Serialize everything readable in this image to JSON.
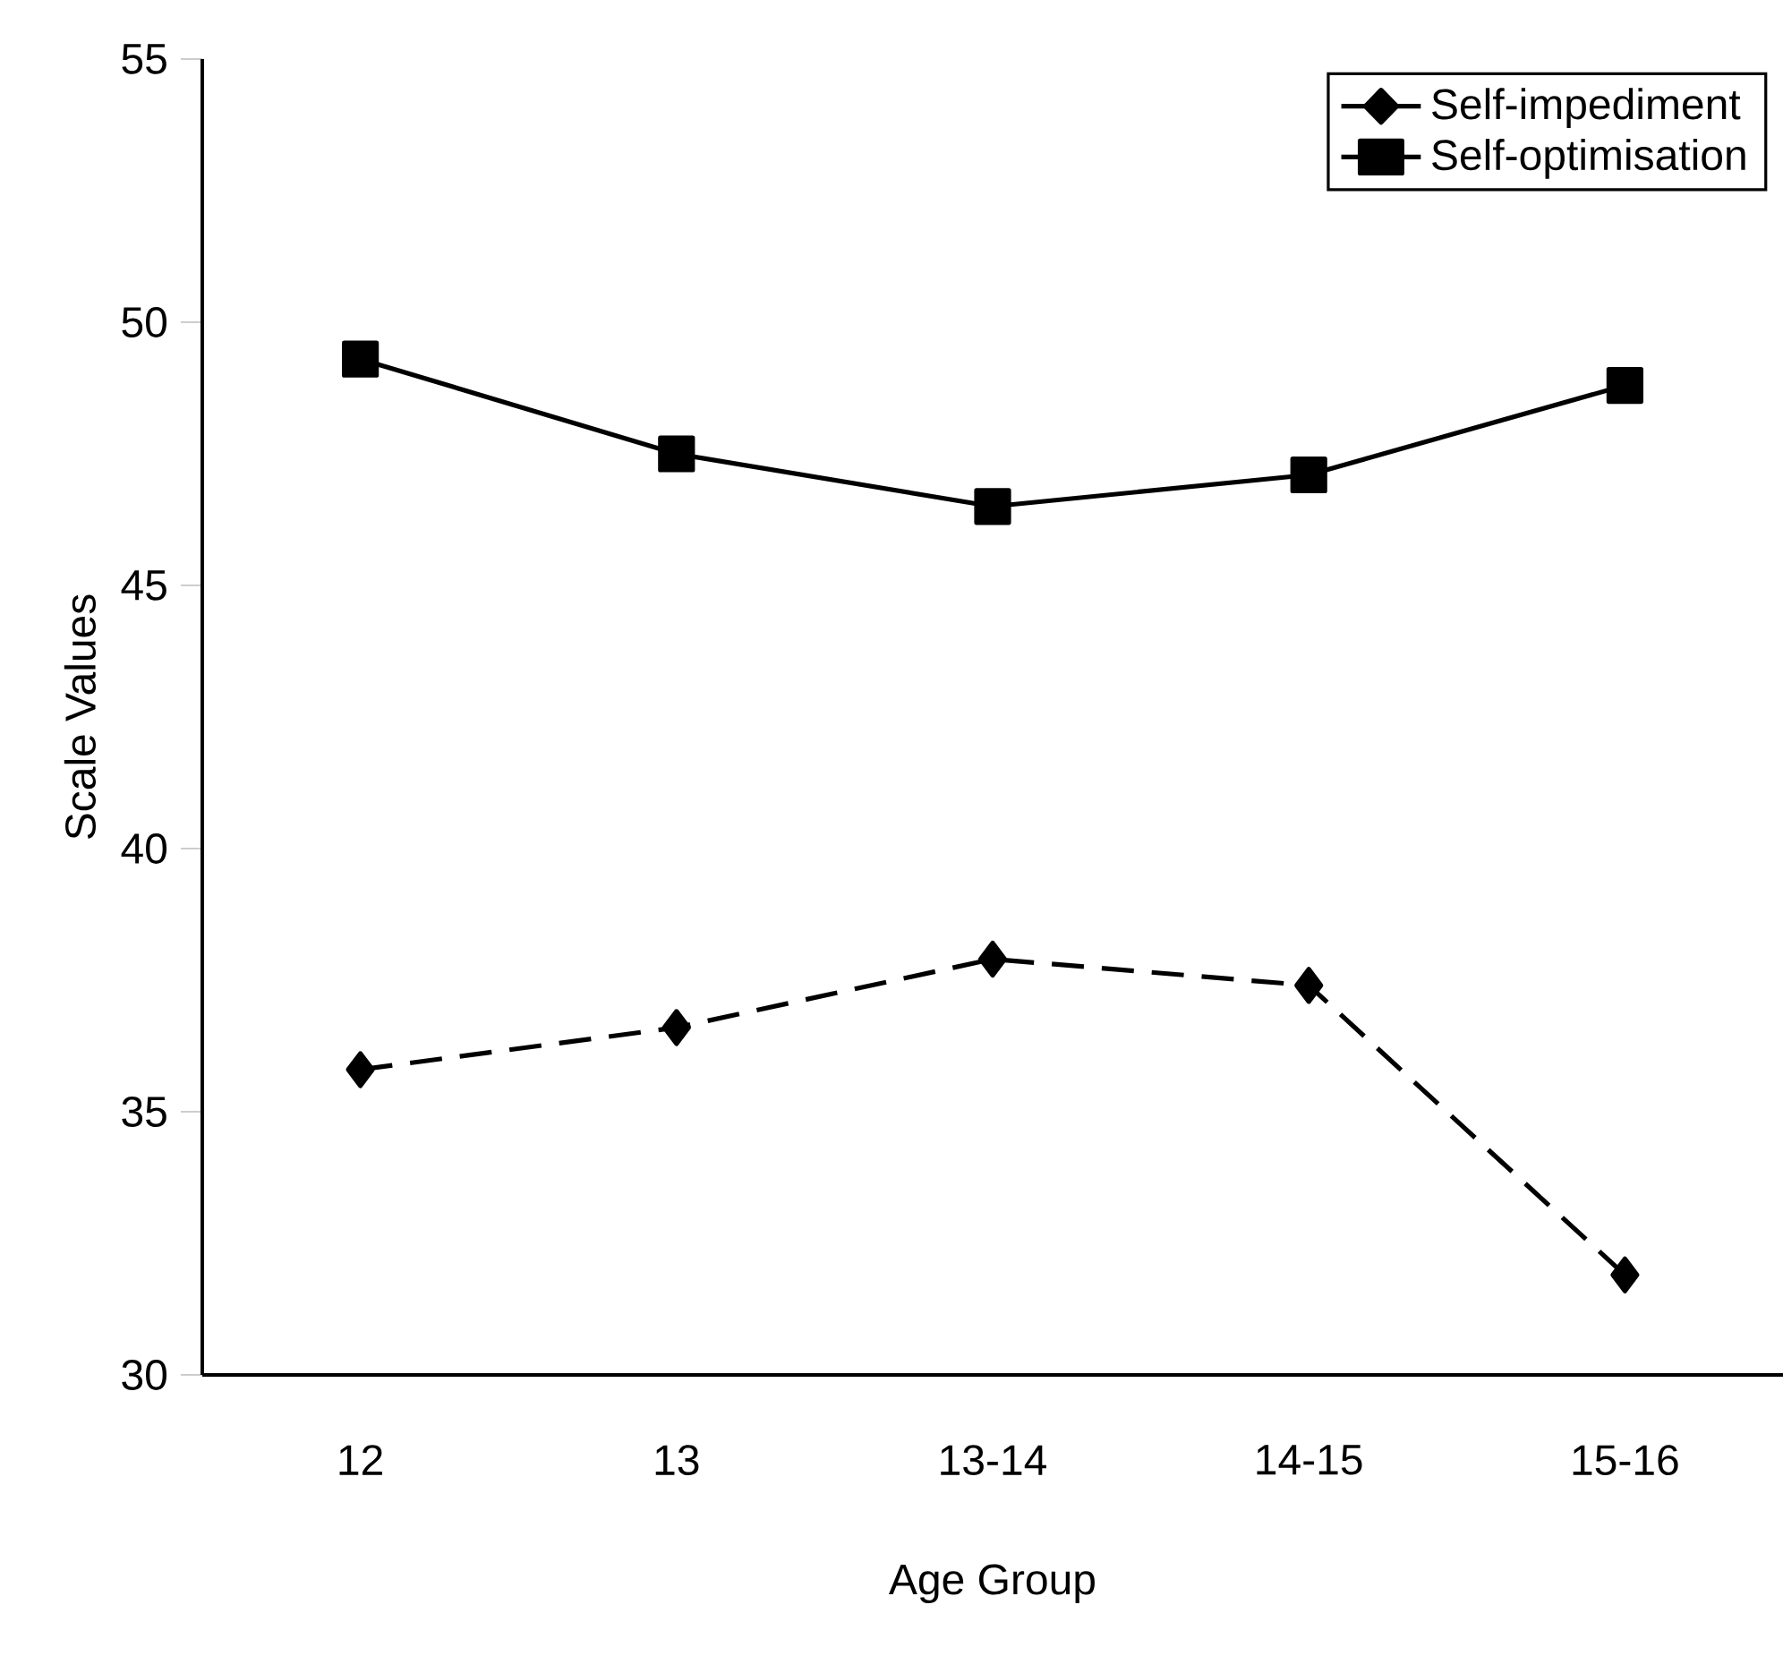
{
  "chart_data": {
    "type": "line",
    "xlabel": "Age Group",
    "ylabel": "Scale Values",
    "categories": [
      "12",
      "13",
      "13-14",
      "14-15",
      "15-16"
    ],
    "series": [
      {
        "name": "Self-impediment",
        "color": "#000000",
        "values": [
          35.8,
          36.6,
          37.9,
          37.4,
          31.9
        ],
        "marker": "diamond",
        "line_style": "dashed"
      },
      {
        "name": "Self-optimisation",
        "color": "#000000",
        "values": [
          49.3,
          47.5,
          46.5,
          47.1,
          48.8
        ],
        "marker": "square",
        "line_style": "solid"
      }
    ],
    "ylim": [
      30,
      55
    ],
    "yticks": [
      30,
      35,
      40,
      45,
      50,
      55
    ],
    "grid": false,
    "legend": "top right"
  }
}
